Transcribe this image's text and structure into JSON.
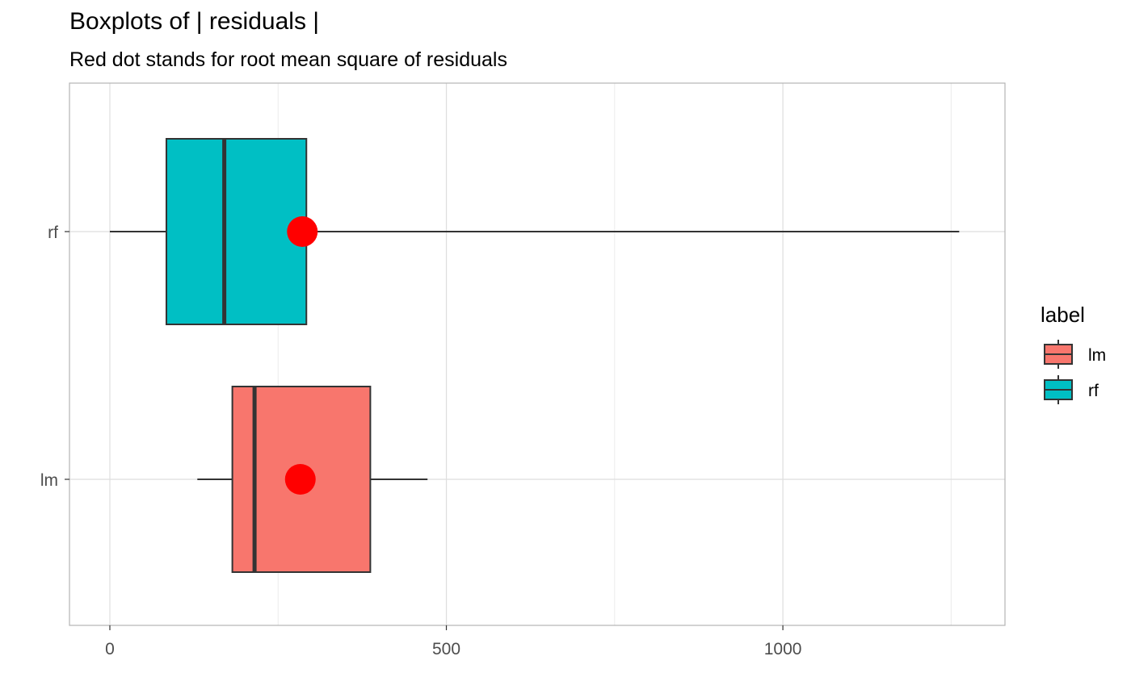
{
  "chart_data": {
    "type": "boxplot",
    "title": "Boxplots of | residuals |",
    "subtitle": "Red dot stands for root mean square of residuals",
    "xlabel": "",
    "ylabel": "",
    "xlim": [
      -60,
      1330
    ],
    "x_ticks": [
      0,
      500,
      1000
    ],
    "x_tick_labels": [
      "0",
      "500",
      "1000"
    ],
    "categories": [
      "lm",
      "rf"
    ],
    "grid": true,
    "legend": {
      "title": "label",
      "position": "right",
      "entries": [
        {
          "label": "lm",
          "color": "#F8766D"
        },
        {
          "label": "rf",
          "color": "#00BFC4"
        }
      ]
    },
    "series": [
      {
        "category": "lm",
        "whisker_low": 130,
        "q1": 182,
        "median": 215,
        "q3": 387,
        "whisker_high": 472,
        "rms": 283,
        "color": "#F8766D"
      },
      {
        "category": "rf",
        "whisker_low": 0,
        "q1": 84,
        "median": 170,
        "q3": 292,
        "whisker_high": 1262,
        "rms": 286,
        "color": "#00BFC4"
      }
    ],
    "rms_color": "#FF0000",
    "outline_color": "#333333"
  }
}
